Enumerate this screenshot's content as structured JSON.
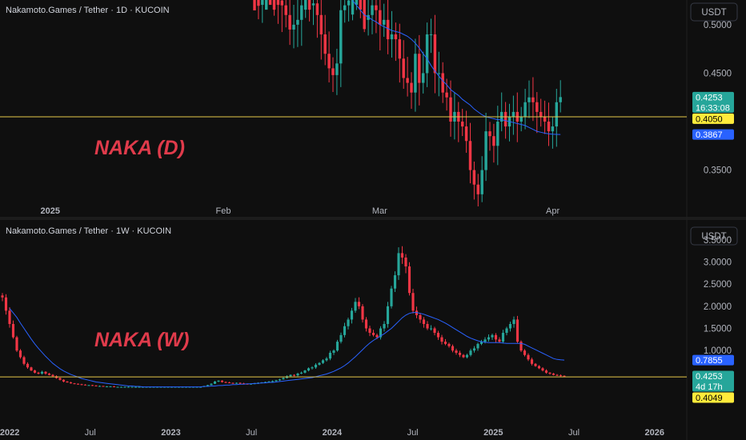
{
  "chart_data": [
    {
      "type": "candlestick",
      "title": "Nakamoto.Games / Tether · 1D · KUCOIN",
      "currency": "USDT",
      "annotation": "NAKA (D)",
      "y_ticks": [
        "0.5000",
        "0.4500",
        "0.3500"
      ],
      "y_tick_values": [
        0.5,
        0.45,
        0.35
      ],
      "ylim": [
        0.3125,
        0.5255
      ],
      "x_ticks": [
        {
          "label": "2025",
          "pos": 0.0,
          "bold": true
        },
        {
          "label": "Feb",
          "pos": 31.0,
          "bold": false
        },
        {
          "label": "Mar",
          "pos": 59.0,
          "bold": false
        },
        {
          "label": "Apr",
          "pos": 90.0,
          "bold": false
        }
      ],
      "xlim": [
        -9.0,
        114.0
      ],
      "first_candle_day": 3,
      "horizontal_line": {
        "value": "0.4050",
        "color": "#e6c84a"
      },
      "price_tags": [
        {
          "value": "0.4253",
          "sub": "16:33:08",
          "color": "#26a69a",
          "y": 0.4253
        },
        {
          "value": "0.4050",
          "color": "#ffeb3b",
          "text_color": "#000000",
          "y": 0.405
        },
        {
          "value": "0.3867",
          "color": "#2962ff",
          "y": 0.3867
        }
      ],
      "ma_color": "#2962ff",
      "up_color": "#26a69a",
      "down_color": "#f23645",
      "candles": [
        {
          "day": 3,
          "o": 0.536,
          "h": 0.545,
          "l": 0.48,
          "c": 0.5
        }
      ],
      "closes": [
        0.536,
        0.53,
        0.535,
        0.545,
        0.54,
        0.53,
        0.525,
        0.52,
        0.51,
        0.495,
        0.5,
        0.505,
        0.52,
        0.53,
        0.52,
        0.522,
        0.51,
        0.49,
        0.47,
        0.455,
        0.448,
        0.46,
        0.515,
        0.52,
        0.525,
        0.54,
        0.545,
        0.535,
        0.505,
        0.51,
        0.52,
        0.515,
        0.5,
        0.505,
        0.485,
        0.49,
        0.485,
        0.465,
        0.445,
        0.44,
        0.43,
        0.47,
        0.44,
        0.45,
        0.49,
        0.49,
        0.45,
        0.45,
        0.43,
        0.425,
        0.4,
        0.41,
        0.4,
        0.395,
        0.38,
        0.35,
        0.335,
        0.325,
        0.35,
        0.39,
        0.385,
        0.375,
        0.4,
        0.41,
        0.395,
        0.405,
        0.41,
        0.4,
        0.405,
        0.42,
        0.425,
        0.42,
        0.41,
        0.405,
        0.4,
        0.39,
        0.395,
        0.42,
        0.4253
      ],
      "ma": [
        0.565,
        0.56,
        0.558,
        0.556,
        0.553,
        0.55,
        0.548,
        0.545,
        0.54,
        0.535,
        0.53,
        0.525,
        0.52,
        0.515,
        0.51,
        0.508,
        0.505,
        0.503,
        0.5,
        0.498,
        0.496,
        0.494,
        0.493,
        0.492,
        0.49,
        0.488,
        0.485,
        0.481,
        0.476,
        0.47,
        0.465,
        0.458,
        0.452,
        0.447,
        0.442,
        0.438,
        0.433,
        0.43,
        0.427,
        0.423,
        0.42,
        0.417,
        0.413,
        0.41,
        0.407,
        0.405,
        0.404,
        0.403,
        0.402,
        0.402,
        0.401,
        0.4,
        0.399,
        0.398,
        0.397,
        0.396,
        0.394,
        0.392,
        0.39,
        0.389,
        0.388,
        0.3875,
        0.387,
        0.3868,
        0.3867
      ]
    },
    {
      "type": "candlestick",
      "title": "Nakamoto.Games / Tether · 1W · KUCOIN",
      "currency": "USDT",
      "annotation": "NAKA (W)",
      "y_ticks": [
        "3.5000",
        "3.0000",
        "2.5000",
        "2.0000",
        "1.5000",
        "1.0000"
      ],
      "y_tick_values": [
        3.5,
        3.0,
        2.5,
        2.0,
        1.5,
        1.0
      ],
      "ylim": [
        -0.3875,
        3.8577
      ],
      "x_ticks": [
        {
          "label": "2022",
          "pos": 2022.0,
          "bold": true
        },
        {
          "label": "Jul",
          "pos": 2022.5,
          "bold": false
        },
        {
          "label": "2023",
          "pos": 2023.0,
          "bold": true
        },
        {
          "label": "Jul",
          "pos": 2023.5,
          "bold": false
        },
        {
          "label": "2024",
          "pos": 2024.0,
          "bold": true
        },
        {
          "label": "Jul",
          "pos": 2024.5,
          "bold": false
        },
        {
          "label": "2025",
          "pos": 2025.0,
          "bold": true
        },
        {
          "label": "Jul",
          "pos": 2025.5,
          "bold": false
        },
        {
          "label": "2026",
          "pos": 2026.0,
          "bold": true
        }
      ],
      "xlim": [
        2021.94,
        2026.2
      ],
      "horizontal_line": {
        "value": "0.4049",
        "color": "#e6c84a"
      },
      "price_tags": [
        {
          "value": "0.7855",
          "color": "#2962ff",
          "y": 0.7855
        },
        {
          "value": "0.4253",
          "sub": "4d 17h",
          "color": "#26a69a",
          "y": 0.4253
        },
        {
          "value": "0.4049",
          "color": "#ffeb3b",
          "text_color": "#000000",
          "y": 0.4049
        }
      ],
      "ma_color": "#2962ff",
      "up_color": "#26a69a",
      "down_color": "#f23645",
      "closes": [
        2.2,
        1.9,
        1.6,
        1.3,
        1.0,
        0.85,
        0.7,
        0.62,
        0.55,
        0.5,
        0.48,
        0.52,
        0.48,
        0.45,
        0.42,
        0.38,
        0.34,
        0.3,
        0.28,
        0.26,
        0.25,
        0.24,
        0.23,
        0.22,
        0.22,
        0.21,
        0.2,
        0.2,
        0.19,
        0.19,
        0.19,
        0.18,
        0.18,
        0.18,
        0.18,
        0.18,
        0.18,
        0.18,
        0.18,
        0.18,
        0.18,
        0.18,
        0.18,
        0.18,
        0.18,
        0.18,
        0.18,
        0.18,
        0.18,
        0.18,
        0.18,
        0.18,
        0.18,
        0.18,
        0.18,
        0.18,
        0.2,
        0.22,
        0.25,
        0.3,
        0.32,
        0.29,
        0.28,
        0.27,
        0.26,
        0.27,
        0.26,
        0.25,
        0.24,
        0.25,
        0.26,
        0.27,
        0.28,
        0.29,
        0.3,
        0.31,
        0.33,
        0.35,
        0.38,
        0.42,
        0.45,
        0.44,
        0.48,
        0.5,
        0.55,
        0.6,
        0.62,
        0.68,
        0.72,
        0.78,
        0.82,
        0.95,
        1.0,
        1.2,
        1.35,
        1.55,
        1.7,
        1.9,
        2.1,
        2.0,
        1.7,
        1.5,
        1.4,
        1.35,
        1.3,
        1.5,
        1.6,
        2.0,
        2.4,
        2.7,
        3.2,
        3.1,
        2.9,
        2.3,
        1.9,
        1.8,
        1.7,
        1.6,
        1.5,
        1.5,
        1.4,
        1.3,
        1.2,
        1.15,
        1.1,
        1.0,
        0.95,
        0.9,
        0.85,
        0.9,
        1.0,
        1.05,
        1.15,
        1.2,
        1.25,
        1.3,
        1.35,
        1.25,
        1.2,
        1.4,
        1.5,
        1.6,
        1.7,
        1.2,
        1.0,
        0.9,
        0.8,
        0.7,
        0.65,
        0.6,
        0.55,
        0.5,
        0.48,
        0.45,
        0.44,
        0.43,
        0.4253
      ],
      "ma": [
        1.95,
        1.85,
        1.75,
        1.62,
        1.5,
        1.38,
        1.26,
        1.15,
        1.05,
        0.96,
        0.87,
        0.79,
        0.71,
        0.65,
        0.59,
        0.54,
        0.5,
        0.46,
        0.43,
        0.4,
        0.37,
        0.35,
        0.33,
        0.31,
        0.29,
        0.28,
        0.27,
        0.26,
        0.25,
        0.24,
        0.23,
        0.22,
        0.21,
        0.2,
        0.2,
        0.19,
        0.19,
        0.18,
        0.18,
        0.18,
        0.18,
        0.18,
        0.18,
        0.18,
        0.18,
        0.18,
        0.18,
        0.18,
        0.18,
        0.18,
        0.18,
        0.18,
        0.18,
        0.18,
        0.19,
        0.19,
        0.2,
        0.2,
        0.21,
        0.21,
        0.22,
        0.22,
        0.23,
        0.23,
        0.24,
        0.24,
        0.25,
        0.25,
        0.26,
        0.26,
        0.27,
        0.27,
        0.28,
        0.28,
        0.29,
        0.3,
        0.31,
        0.32,
        0.33,
        0.34,
        0.35,
        0.36,
        0.37,
        0.38,
        0.39,
        0.41,
        0.43,
        0.45,
        0.47,
        0.5,
        0.53,
        0.57,
        0.61,
        0.66,
        0.72,
        0.79,
        0.86,
        0.94,
        1.02,
        1.1,
        1.17,
        1.23,
        1.28,
        1.33,
        1.38,
        1.44,
        1.5,
        1.58,
        1.66,
        1.74,
        1.8,
        1.84,
        1.86,
        1.86,
        1.84,
        1.82,
        1.79,
        1.76,
        1.73,
        1.7,
        1.66,
        1.62,
        1.57,
        1.52,
        1.47,
        1.42,
        1.37,
        1.32,
        1.28,
        1.25,
        1.22,
        1.2,
        1.19,
        1.18,
        1.18,
        1.18,
        1.18,
        1.17,
        1.16,
        1.16,
        1.16,
        1.16,
        1.16,
        1.14,
        1.1,
        1.06,
        1.02,
        0.98,
        0.94,
        0.9,
        0.86,
        0.82,
        0.8,
        0.79,
        0.7855
      ]
    }
  ]
}
